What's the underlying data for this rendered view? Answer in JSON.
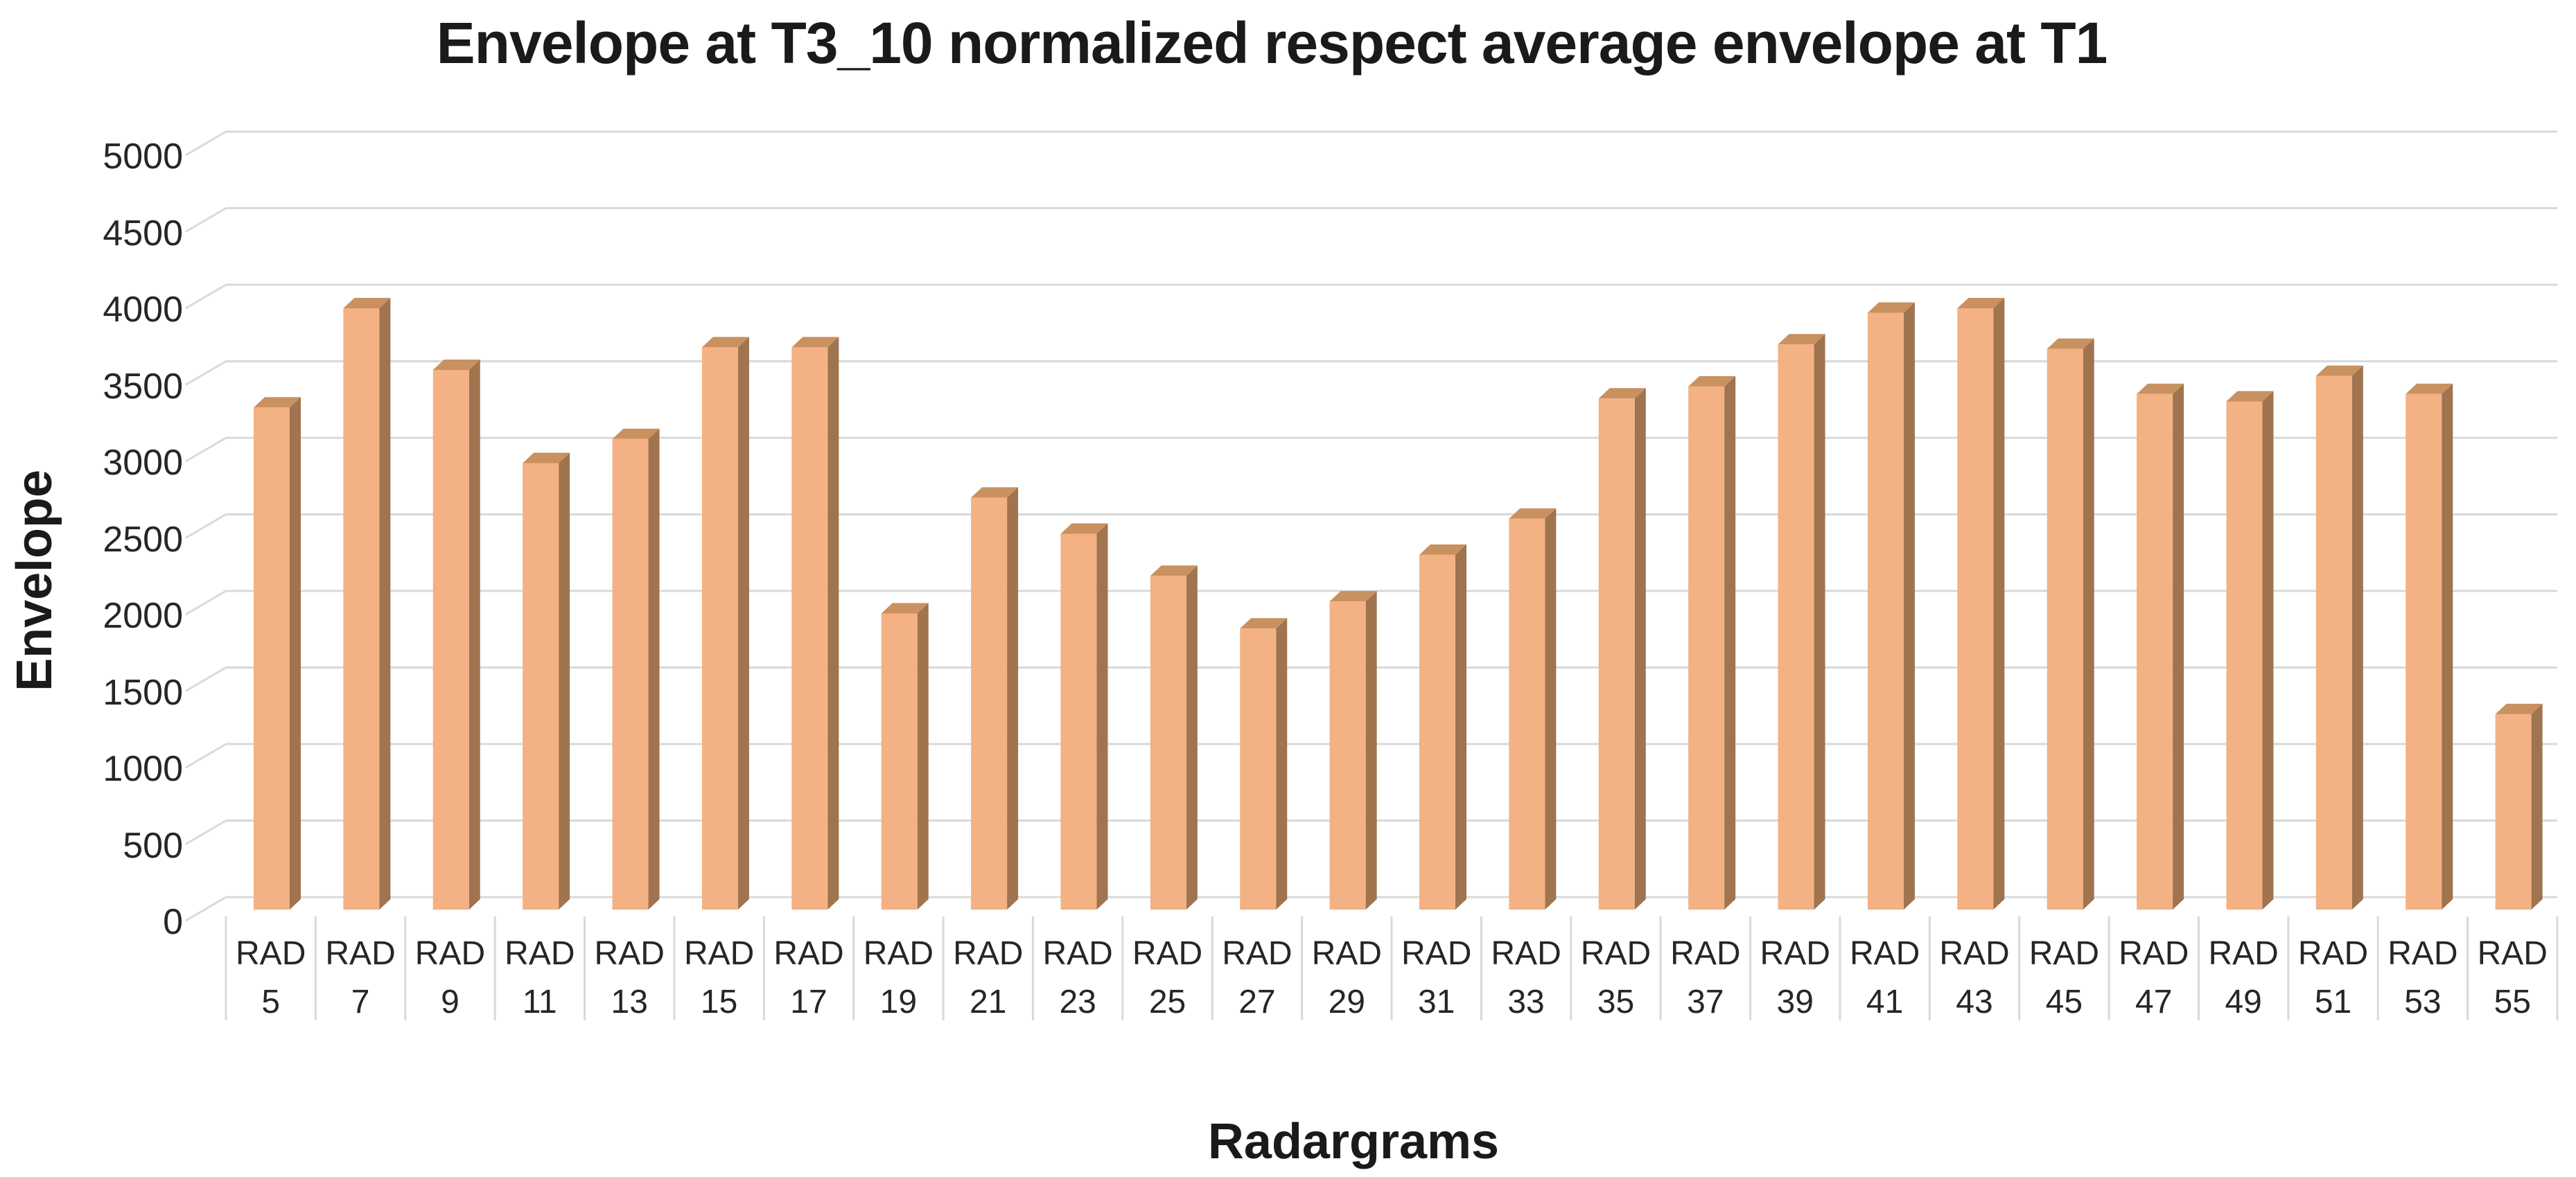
{
  "chart_data": {
    "type": "bar",
    "style": "3d-clustered-column",
    "title": "Envelope at T3_10 normalized respect average envelope at T1",
    "xlabel": "Radargrams",
    "ylabel": "Envelope",
    "categories": [
      "RAD 5",
      "RAD 7",
      "RAD 9",
      "RAD 11",
      "RAD 13",
      "RAD 15",
      "RAD 17",
      "RAD 19",
      "RAD 21",
      "RAD 23",
      "RAD 25",
      "RAD 27",
      "RAD 29",
      "RAD 31",
      "RAD 33",
      "RAD 35",
      "RAD 37",
      "RAD 39",
      "RAD 41",
      "RAD 43",
      "RAD 45",
      "RAD 47",
      "RAD 49",
      "RAD 51",
      "RAD 53",
      "RAD 55"
    ],
    "values": [
      3340,
      4000,
      3590,
      2970,
      3130,
      3740,
      3740,
      1970,
      2740,
      2500,
      2220,
      1870,
      2050,
      2360,
      2600,
      3400,
      3480,
      3760,
      3970,
      4000,
      3730,
      3430,
      3380,
      3550,
      3430,
      1300
    ],
    "ylim": [
      0,
      5000
    ],
    "yticks": [
      0,
      500,
      1000,
      1500,
      2000,
      2500,
      3000,
      3500,
      4000,
      4500,
      5000
    ],
    "grid": true,
    "legend_position": "none",
    "colors": {
      "bar_front": "#F4B183",
      "bar_side": "#9F744F",
      "bar_top": "#C8915F",
      "gridline": "#D9D9D9",
      "tick_text": "#262626",
      "title_text": "#1A1A1A"
    }
  }
}
